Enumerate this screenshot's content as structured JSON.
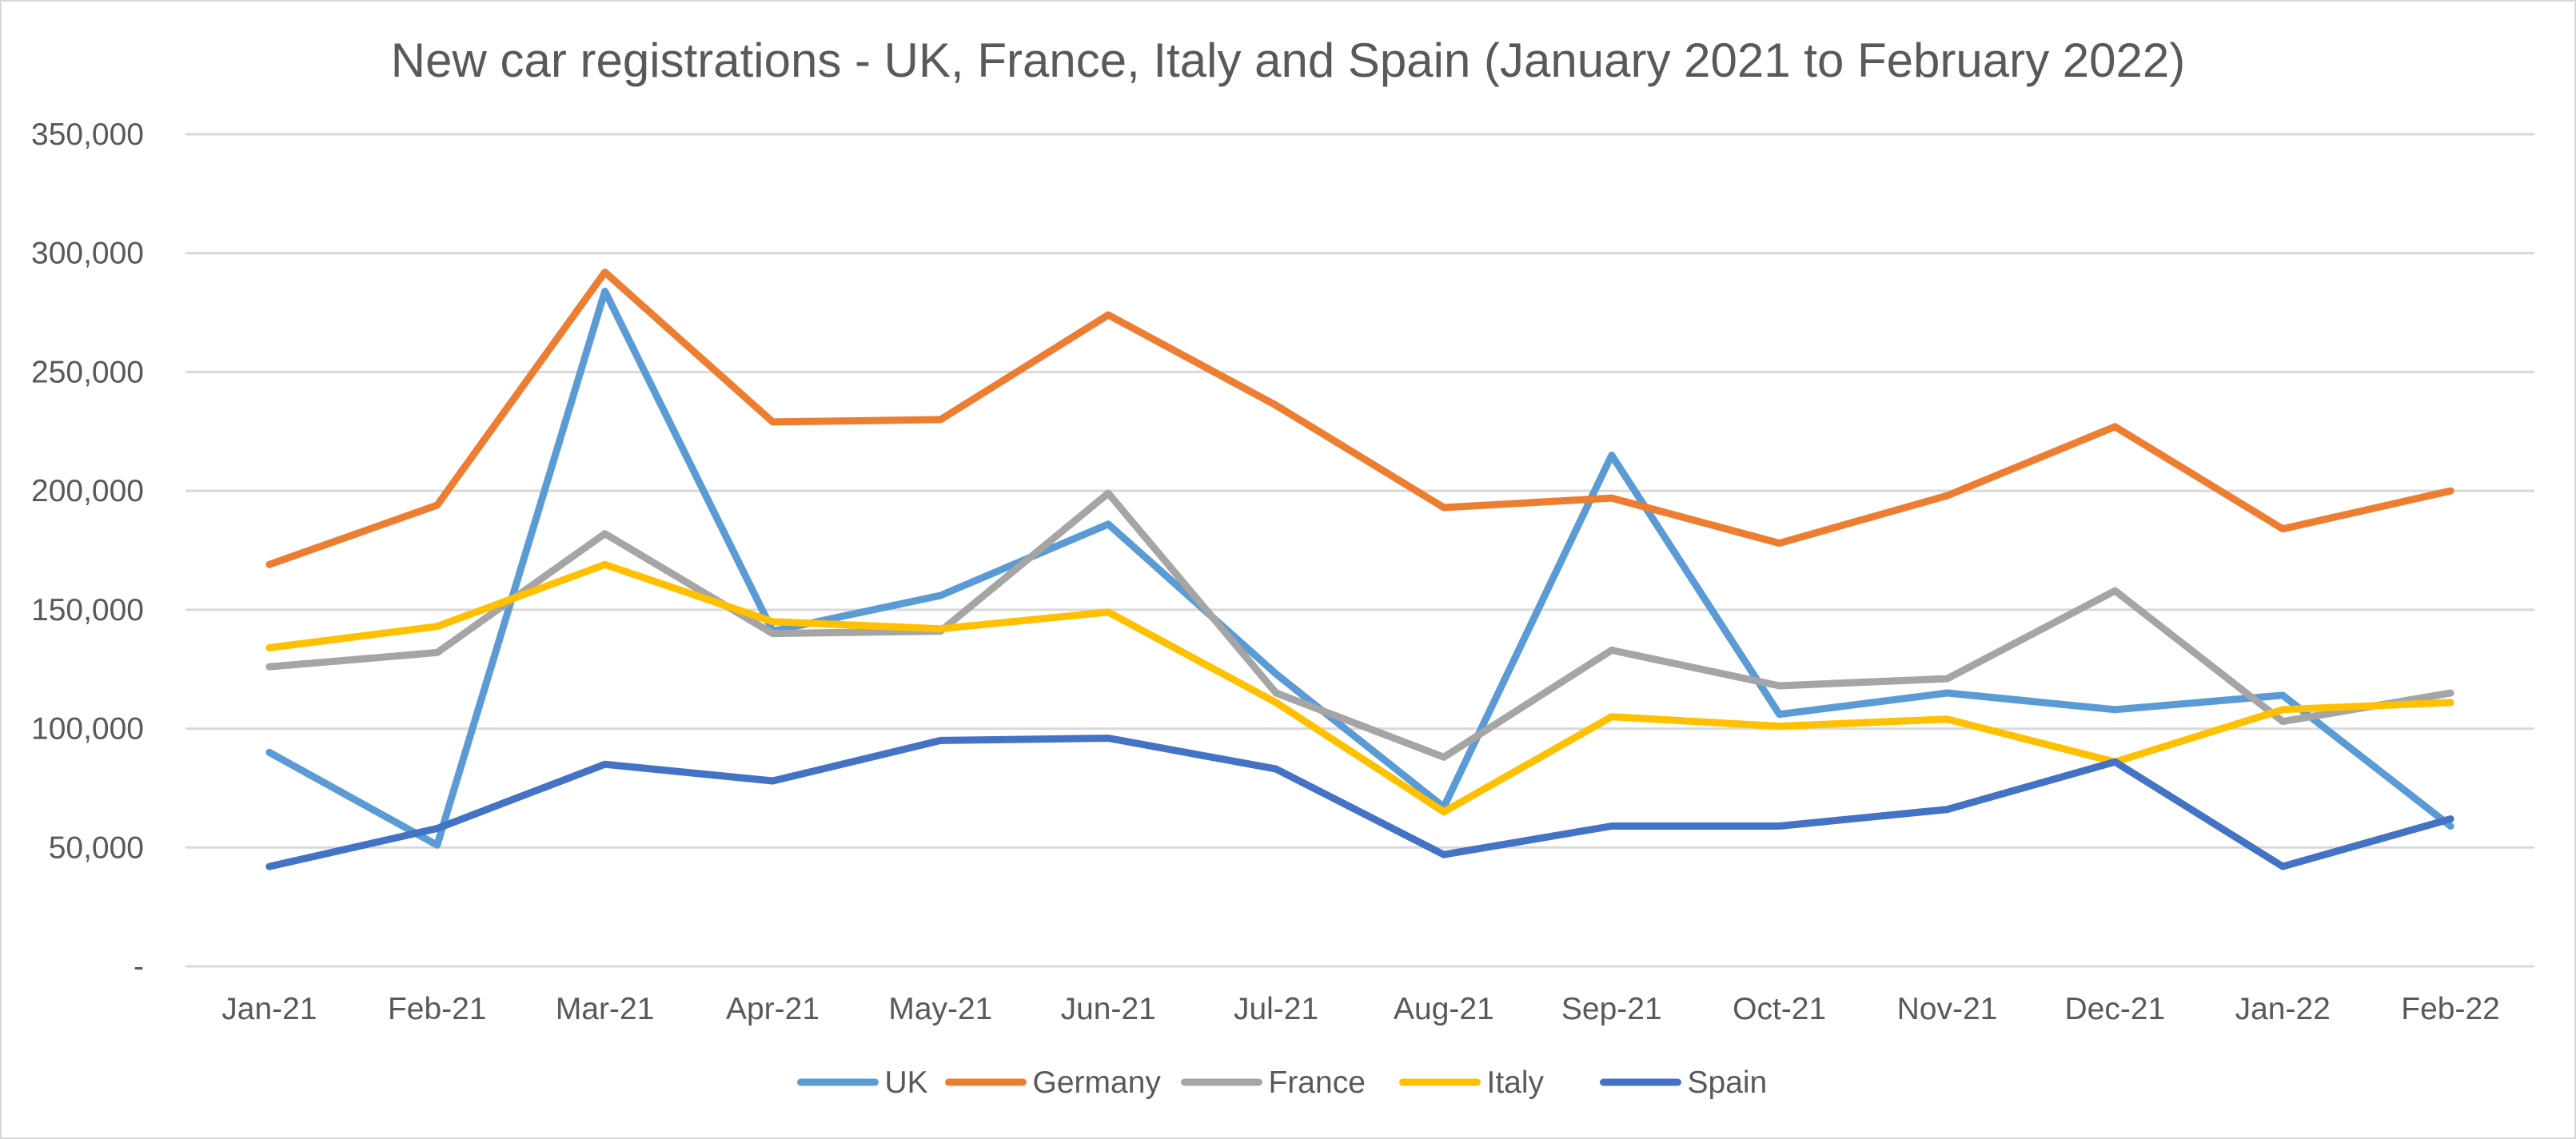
{
  "chart_data": {
    "type": "line",
    "title": "New car registrations - UK, France, Italy and Spain (January 2021 to February 2022)",
    "xlabel": "",
    "ylabel": "",
    "categories": [
      "Jan-21",
      "Feb-21",
      "Mar-21",
      "Apr-21",
      "May-21",
      "Jun-21",
      "Jul-21",
      "Aug-21",
      "Sep-21",
      "Oct-21",
      "Nov-21",
      "Dec-21",
      "Jan-22",
      "Feb-22"
    ],
    "ylim": [
      0,
      350000
    ],
    "yticks": [
      0,
      50000,
      100000,
      150000,
      200000,
      250000,
      300000,
      350000
    ],
    "ytick_labels": [
      "-",
      "50,000",
      "100,000",
      "150,000",
      "200,000",
      "250,000",
      "300,000",
      "350,000"
    ],
    "grid": true,
    "legend_position": "bottom",
    "series": [
      {
        "name": "UK",
        "color": "#5b9bd5",
        "values": [
          90000,
          51000,
          284000,
          141000,
          156000,
          186000,
          123000,
          67000,
          215000,
          106000,
          115000,
          108000,
          114000,
          59000
        ]
      },
      {
        "name": "Germany",
        "color": "#ed7d31",
        "values": [
          169000,
          194000,
          292000,
          229000,
          230000,
          274000,
          236000,
          193000,
          197000,
          178000,
          198000,
          227000,
          184000,
          200000
        ]
      },
      {
        "name": "France",
        "color": "#a5a5a5",
        "values": [
          126000,
          132000,
          182000,
          140000,
          141000,
          199000,
          115000,
          88000,
          133000,
          118000,
          121000,
          158000,
          103000,
          115000
        ]
      },
      {
        "name": "Italy",
        "color": "#ffc000",
        "values": [
          134000,
          143000,
          169000,
          145000,
          142000,
          149000,
          111000,
          65000,
          105000,
          101000,
          104000,
          86000,
          108000,
          111000
        ]
      },
      {
        "name": "Spain",
        "color": "#4472c4",
        "values": [
          42000,
          58000,
          85000,
          78000,
          95000,
          96000,
          83000,
          47000,
          59000,
          59000,
          66000,
          86000,
          42000,
          62000
        ]
      }
    ]
  }
}
